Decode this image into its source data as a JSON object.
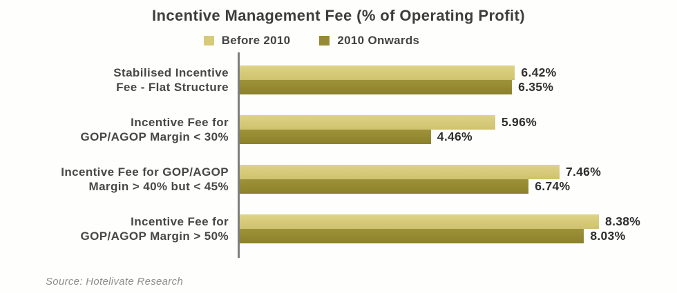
{
  "source": "Source: Hotelivate Research",
  "colors": {
    "series_before_2010": "#d7cb7b",
    "series_2010_onwards": "#968b33",
    "axis_line": "#7e7e7e",
    "title_text": "#3d3d3d",
    "value_text": "#2f2f2f",
    "source_text": "#8d8d8d"
  },
  "chart_data": {
    "type": "bar",
    "orientation": "horizontal",
    "title": "Incentive Management Fee (% of Operating Profit)",
    "unit": "%",
    "grid": false,
    "legend_position": "top",
    "xlim": [
      0,
      10.2
    ],
    "categories": [
      "Stabilised Incentive Fee - Flat Structure",
      "Incentive Fee for GOP/AGOP Margin < 30%",
      "Incentive Fee for GOP/AGOP Margin > 40% but < 45%",
      "Incentive Fee for GOP/AGOP Margin > 50%"
    ],
    "categories_display": [
      "Stabilised Incentive\nFee - Flat Structure",
      "Incentive Fee for\nGOP/AGOP Margin < 30%",
      "Incentive Fee for GOP/AGOP\nMargin > 40% but < 45%",
      "Incentive Fee for\nGOP/AGOP Margin > 50%"
    ],
    "series": [
      {
        "name": "Before 2010",
        "color": "#d7cb7b",
        "values": [
          6.42,
          5.96,
          7.46,
          8.38
        ],
        "labels": [
          "6.42%",
          "5.96%",
          "7.46%",
          "8.38%"
        ]
      },
      {
        "name": "2010 Onwards",
        "color": "#968b33",
        "values": [
          6.35,
          4.46,
          6.74,
          8.03
        ],
        "labels": [
          "6.35%",
          "4.46%",
          "6.74%",
          "8.03%"
        ]
      }
    ]
  }
}
